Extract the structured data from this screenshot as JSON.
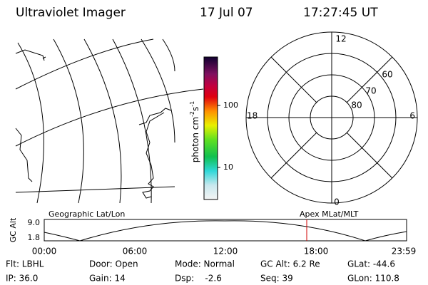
{
  "header": {
    "title": "Ultraviolet Imager",
    "date": "17 Jul 07",
    "time": "17:27:45 UT"
  },
  "colorbar": {
    "label": [
      "photon cm",
      "-2",
      "s",
      "-1"
    ],
    "ticks": [
      "100",
      "10"
    ]
  },
  "polar": {
    "mlt_labels": [
      "12",
      "18",
      "6",
      "0"
    ],
    "lat_labels": [
      "60",
      "70",
      "80"
    ]
  },
  "timeline": {
    "left_title": "Geographic Lat/Lon",
    "right_title": "Apex MLat/MLT",
    "axis_label": "GC Alt",
    "y_labels": [
      "9.0",
      "1.8"
    ],
    "x_labels": [
      "00:00",
      "06:00",
      "12:00",
      "18:00",
      "23:59"
    ]
  },
  "status": {
    "rows": [
      [
        "Flt: LBHL",
        "Door: Open",
        "Mode: Normal",
        "GC Alt: 6.2 Re",
        "GLat: -44.6"
      ],
      [
        "IP: 36.0",
        "Gain: 14",
        "Dsp:    -2.6",
        "Seq: 39",
        "GLon: 110.8"
      ]
    ]
  }
}
